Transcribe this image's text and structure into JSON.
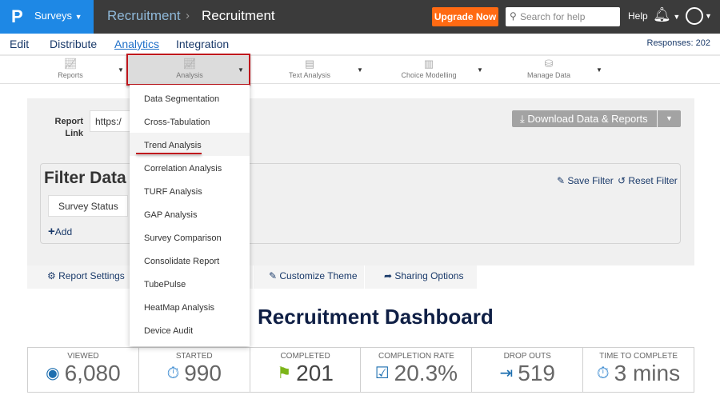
{
  "header": {
    "logo": "P",
    "product": "Surveys",
    "breadcrumb": [
      "Recruitment",
      "Recruitment"
    ],
    "upgrade_label": "Upgrade Now",
    "search_placeholder": "Search for help",
    "help_label": "Help"
  },
  "nav": {
    "items": [
      "Edit",
      "Distribute",
      "Analytics",
      "Integration"
    ],
    "active": "Analytics",
    "responses": "Responses: 202"
  },
  "toolbar": {
    "items": [
      "Reports",
      "Analysis",
      "Text Analysis",
      "Choice Modelling",
      "Manage Data"
    ],
    "active": "Analysis"
  },
  "report": {
    "link_label": "Report Link",
    "link_value": "https:/",
    "download_label": "Download Data & Reports"
  },
  "filter": {
    "title": "Filter Data",
    "save_label": "Save Filter",
    "reset_label": "Reset Filter",
    "select_value": "Survey Status",
    "add_label": "Add"
  },
  "tabs": [
    "Report Settings",
    "Customize Theme",
    "Sharing Options"
  ],
  "heading": "Recruitment Dashboard",
  "stats": [
    {
      "label": "VIEWED",
      "value": "6,080",
      "icon": "eye-icon",
      "color": "#1e6fb0"
    },
    {
      "label": "STARTED",
      "value": "990",
      "icon": "stopwatch-icon",
      "color": "#3a8ad0"
    },
    {
      "label": "COMPLETED",
      "value": "201",
      "icon": "flag-icon",
      "color": "#7cb518"
    },
    {
      "label": "COMPLETION RATE",
      "value": "20.3%",
      "icon": "checkbox-icon",
      "color": "#1e6fb0"
    },
    {
      "label": "DROP OUTS",
      "value": "519",
      "icon": "exit-icon",
      "color": "#1e6fb0"
    },
    {
      "label": "TIME TO COMPLETE",
      "value": "3 mins",
      "icon": "stopwatch-icon",
      "color": "#3a8ad0"
    }
  ],
  "menu": {
    "items": [
      "Data Segmentation",
      "Cross-Tabulation",
      "Trend Analysis",
      "Correlation Analysis",
      "TURF Analysis",
      "GAP Analysis",
      "Survey Comparison",
      "Consolidate Report",
      "TubePulse",
      "HeatMap Analysis",
      "Device Audit"
    ],
    "highlighted": "Trend Analysis"
  },
  "colors": {
    "brand": "#1e88e5",
    "upgrade": "#ff6a13",
    "highlight_border": "#c0161d",
    "navy": "#0f1f45"
  }
}
